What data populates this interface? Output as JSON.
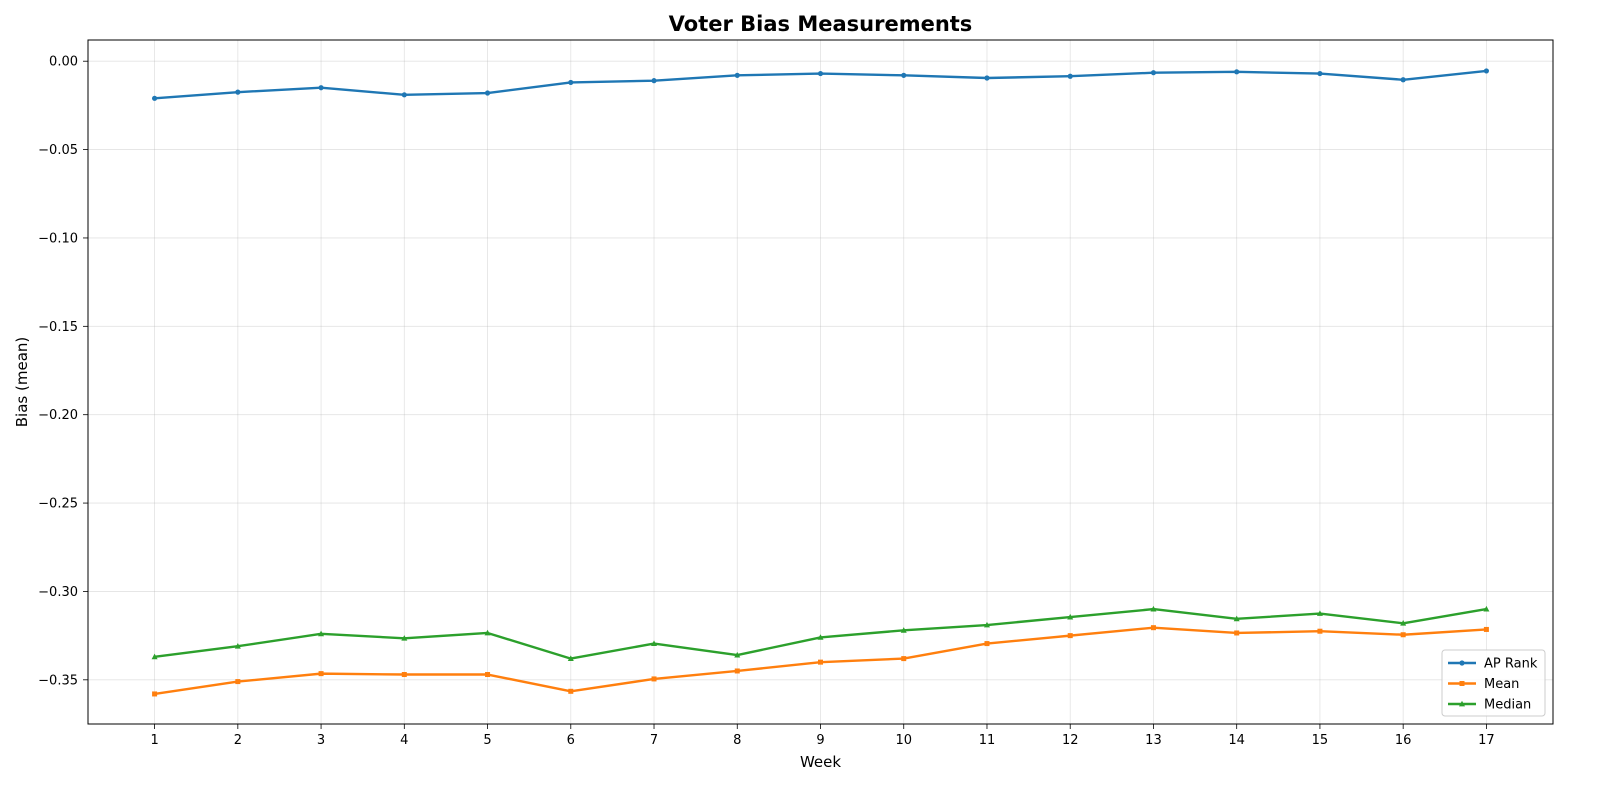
{
  "chart_data": {
    "type": "line",
    "title": "Voter Bias Measurements",
    "xlabel": "Week",
    "ylabel": "Bias (mean)",
    "x": [
      1,
      2,
      3,
      4,
      5,
      6,
      7,
      8,
      9,
      10,
      11,
      12,
      13,
      14,
      15,
      16,
      17
    ],
    "xlim": [
      0.2,
      17.8
    ],
    "ylim": [
      -0.375,
      0.012
    ],
    "yticks": [
      0.0,
      -0.05,
      -0.1,
      -0.15,
      -0.2,
      -0.25,
      -0.3,
      -0.35
    ],
    "ytick_labels": [
      "0.00",
      "−0.05",
      "−0.10",
      "−0.15",
      "−0.20",
      "−0.25",
      "−0.30",
      "−0.35"
    ],
    "grid": true,
    "legend_position": "lower-right",
    "series": [
      {
        "name": "AP Rank",
        "color": "#1f77b4",
        "marker": "circle",
        "values": [
          -0.021,
          -0.0175,
          -0.015,
          -0.019,
          -0.018,
          -0.012,
          -0.011,
          -0.008,
          -0.007,
          -0.008,
          -0.0095,
          -0.0085,
          -0.0065,
          -0.006,
          -0.007,
          -0.0105,
          -0.0055
        ]
      },
      {
        "name": "Mean",
        "color": "#ff7f0e",
        "marker": "square",
        "values": [
          -0.358,
          -0.351,
          -0.3465,
          -0.347,
          -0.347,
          -0.3565,
          -0.3495,
          -0.345,
          -0.34,
          -0.338,
          -0.3295,
          -0.325,
          -0.3205,
          -0.3235,
          -0.3225,
          -0.3245,
          -0.3215
        ]
      },
      {
        "name": "Median",
        "color": "#2ca02c",
        "marker": "triangle",
        "values": [
          -0.337,
          -0.331,
          -0.324,
          -0.3265,
          -0.3235,
          -0.338,
          -0.3295,
          -0.336,
          -0.326,
          -0.322,
          -0.319,
          -0.3145,
          -0.31,
          -0.3155,
          -0.3125,
          -0.318,
          -0.31
        ]
      }
    ]
  }
}
